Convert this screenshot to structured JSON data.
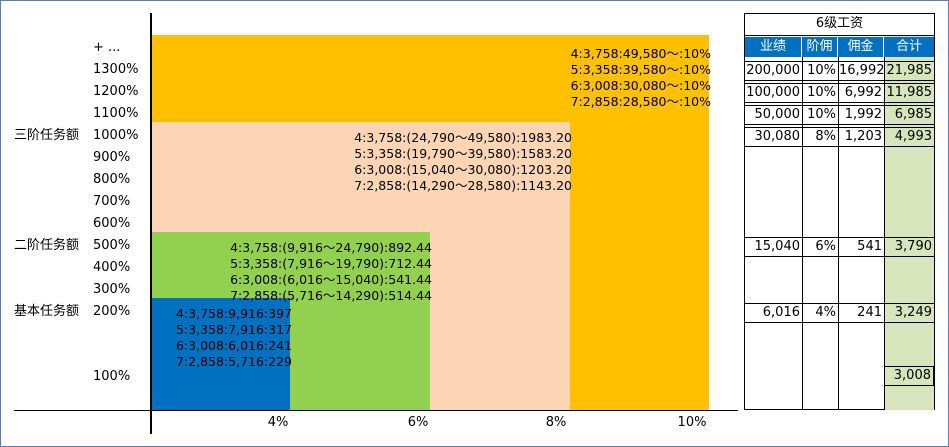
{
  "levels": [
    "+ ...",
    "1300%",
    "1200%",
    "1100%",
    "1000%",
    "900%",
    "800%",
    "700%",
    "600%",
    "500%",
    "400%",
    "300%",
    "200%",
    "100%"
  ],
  "tiers": [
    {
      "label": "三阶任务额",
      "level": "1000%"
    },
    {
      "label": "二阶任务额",
      "level": "500%"
    },
    {
      "label": "基本任务额",
      "level": "200%"
    }
  ],
  "colors": {
    "orange": "#ffc000",
    "peach": "#fcd5b4",
    "green": "#92d050",
    "blue": "#0070c0",
    "table_header": "#0070c0",
    "total_col": "#d8e4bc",
    "frame": "#5b7fb0"
  },
  "chart_data": {
    "type": "bar",
    "xlabel": "",
    "ylabel": "",
    "x_ticks": [
      "4%",
      "6%",
      "8%",
      "10%"
    ],
    "bands": [
      {
        "rate": "4%",
        "from_level": "100%",
        "to_level": "200%",
        "color": "blue",
        "lines": [
          "4:3,758:9,916:397",
          "5:3,358:7,916:317",
          "6:3,008:6,016:241",
          "7:2,858:5,716:229"
        ]
      },
      {
        "rate": "6%",
        "from_level": "100%",
        "to_level": "500%",
        "color": "green",
        "lines": [
          "4:3,758:(9,916～24,790):892.44",
          "5:3,358:(7,916～19,790):712.44",
          "6:3,008:(6,016～15,040):541.44",
          "7:2,858:(5,716～14,290):514.44"
        ]
      },
      {
        "rate": "8%",
        "from_level": "100%",
        "to_level": "1000%",
        "color": "peach",
        "lines": [
          "4:3,758:(24,790～49,580):1983.20",
          "5:3,358:(19,790～39,580):1583.20",
          "6:3,008:(15,040～30,080):1203.20",
          "7:2,858:(14,290～28,580):1143.20"
        ]
      },
      {
        "rate": "10%",
        "from_level": "100%",
        "to_level": "+ ...",
        "color": "orange",
        "lines": [
          "4:3,758:49,580～:10%",
          "5:3,358:39,580～:10%",
          "6:3,008:30,080～:10%",
          "7:2,858:28,580～:10%"
        ]
      }
    ]
  },
  "salary_table": {
    "title": "6级工资",
    "headers": [
      "业绩",
      "阶佣",
      "佣金",
      "合计"
    ],
    "rows": [
      {
        "level": "1300%",
        "cells": [
          "200,000",
          "10%",
          "16,992",
          "21,985"
        ]
      },
      {
        "level": "1200%",
        "cells": [
          "100,000",
          "10%",
          "6,992",
          "11,985"
        ]
      },
      {
        "level": "1100%",
        "cells": [
          "50,000",
          "10%",
          "1,992",
          "6,985"
        ]
      },
      {
        "level": "1000%",
        "cells": [
          "30,080",
          "8%",
          "1,203",
          "4,993"
        ]
      },
      {
        "level": "500%",
        "cells": [
          "15,040",
          "6%",
          "541",
          "3,790"
        ]
      },
      {
        "level": "200%",
        "cells": [
          "6,016",
          "4%",
          "241",
          "3,249"
        ]
      },
      {
        "level": "100%",
        "cells": [
          "",
          "",
          "",
          "3,008"
        ]
      }
    ]
  }
}
